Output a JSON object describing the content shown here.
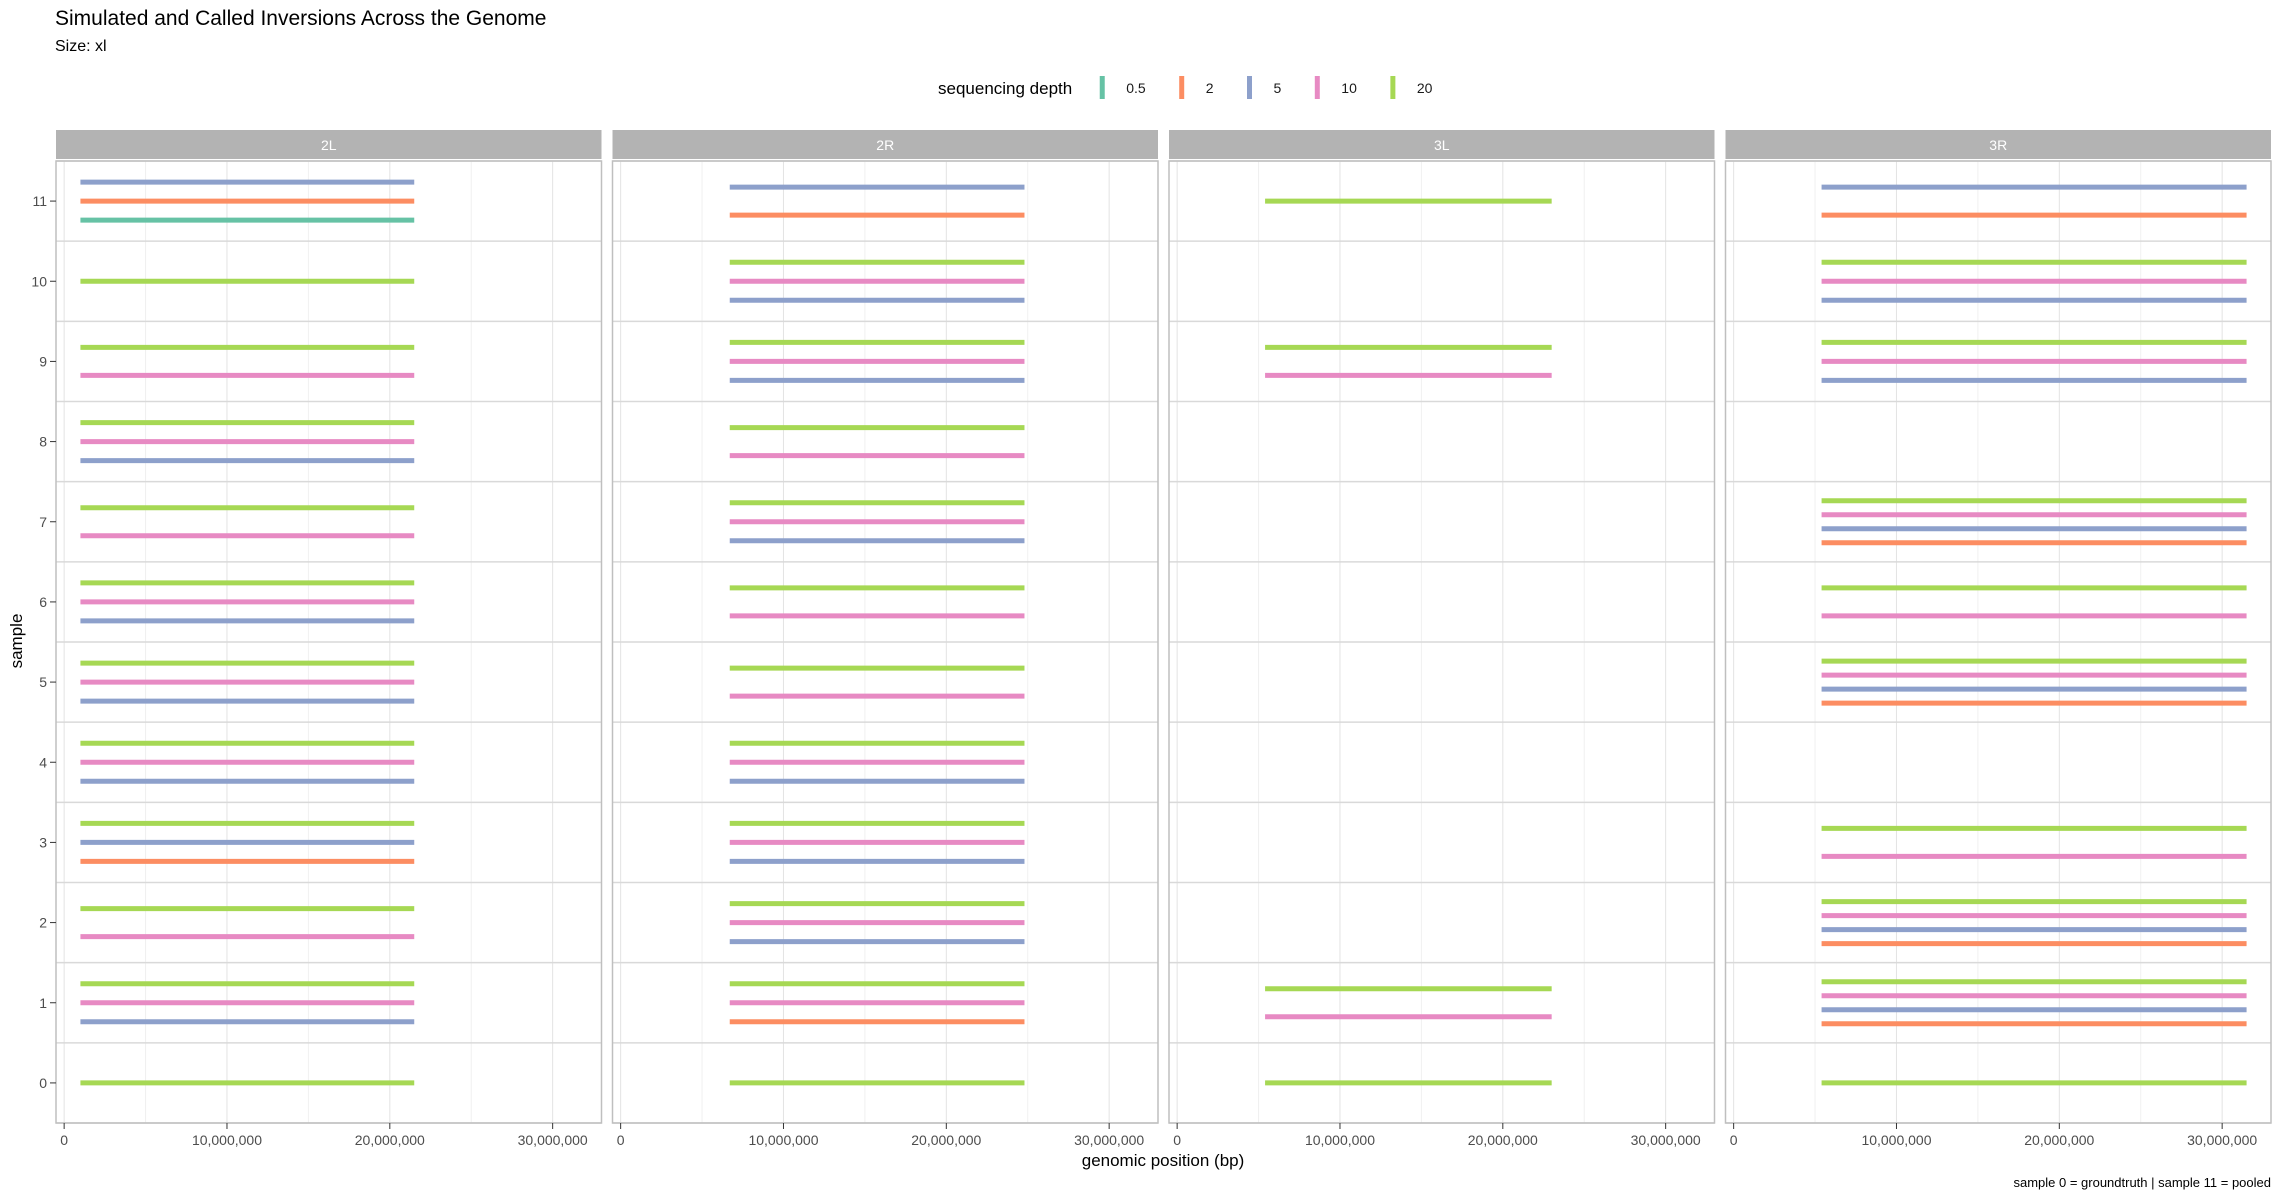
{
  "chart_data": {
    "type": "segment",
    "title": "Simulated and Called Inversions Across the Genome",
    "subtitle": "Size: xl",
    "xlabel": "genomic position (bp)",
    "ylabel": "sample",
    "caption": "sample 0 = groundtruth | sample 11 = pooled",
    "legend": {
      "title": "sequencing depth",
      "position": "top",
      "entries": [
        {
          "label": "0.5",
          "color": "#66C2A5"
        },
        {
          "label": "2",
          "color": "#FC8D62"
        },
        {
          "label": "5",
          "color": "#8DA0CB"
        },
        {
          "label": "10",
          "color": "#E78AC3"
        },
        {
          "label": "20",
          "color": "#A6D854"
        }
      ]
    },
    "xlim": [
      -500000,
      33000000
    ],
    "x_ticks": [
      0,
      10000000,
      20000000,
      30000000
    ],
    "x_tick_labels": [
      "0",
      "10,000,000",
      "20,000,000",
      "30,000,000"
    ],
    "y_categories": [
      "0",
      "1",
      "2",
      "3",
      "4",
      "5",
      "6",
      "7",
      "8",
      "9",
      "10",
      "11"
    ],
    "grid": true,
    "facets": [
      {
        "name": "2L",
        "start": 1000000,
        "end": 21500000,
        "samples": {
          "0": [
            "20"
          ],
          "1": [
            "5",
            "10",
            "20"
          ],
          "2": [
            "10",
            "20"
          ],
          "3": [
            "2",
            "5",
            "20"
          ],
          "4": [
            "5",
            "10",
            "20"
          ],
          "5": [
            "5",
            "10",
            "20"
          ],
          "6": [
            "5",
            "10",
            "20"
          ],
          "7": [
            "10",
            "20"
          ],
          "8": [
            "5",
            "10",
            "20"
          ],
          "9": [
            "10",
            "20"
          ],
          "10": [
            "20"
          ],
          "11": [
            "0.5",
            "2",
            "5"
          ]
        }
      },
      {
        "name": "2R",
        "start": 6700000,
        "end": 24800000,
        "samples": {
          "0": [
            "20"
          ],
          "1": [
            "2",
            "10",
            "20"
          ],
          "2": [
            "5",
            "10",
            "20"
          ],
          "3": [
            "5",
            "10",
            "20"
          ],
          "4": [
            "5",
            "10",
            "20"
          ],
          "5": [
            "10",
            "20"
          ],
          "6": [
            "10",
            "20"
          ],
          "7": [
            "5",
            "10",
            "20"
          ],
          "8": [
            "10",
            "20"
          ],
          "9": [
            "5",
            "10",
            "20"
          ],
          "10": [
            "5",
            "10",
            "20"
          ],
          "11": [
            "2",
            "5"
          ]
        }
      },
      {
        "name": "3L",
        "start": 5400000,
        "end": 23000000,
        "samples": {
          "0": [
            "20"
          ],
          "1": [
            "10",
            "20"
          ],
          "9": [
            "10",
            "20"
          ],
          "11": [
            "20"
          ]
        }
      },
      {
        "name": "3R",
        "start": 5400000,
        "end": 31500000,
        "samples": {
          "0": [
            "20"
          ],
          "1": [
            "2",
            "5",
            "10",
            "20"
          ],
          "2": [
            "2",
            "5",
            "10",
            "20"
          ],
          "3": [
            "10",
            "20"
          ],
          "5": [
            "2",
            "5",
            "10",
            "20"
          ],
          "6": [
            "10",
            "20"
          ],
          "7": [
            "2",
            "5",
            "10",
            "20"
          ],
          "9": [
            "5",
            "10",
            "20"
          ],
          "10": [
            "5",
            "10",
            "20"
          ],
          "11": [
            "2",
            "5"
          ]
        }
      }
    ]
  }
}
